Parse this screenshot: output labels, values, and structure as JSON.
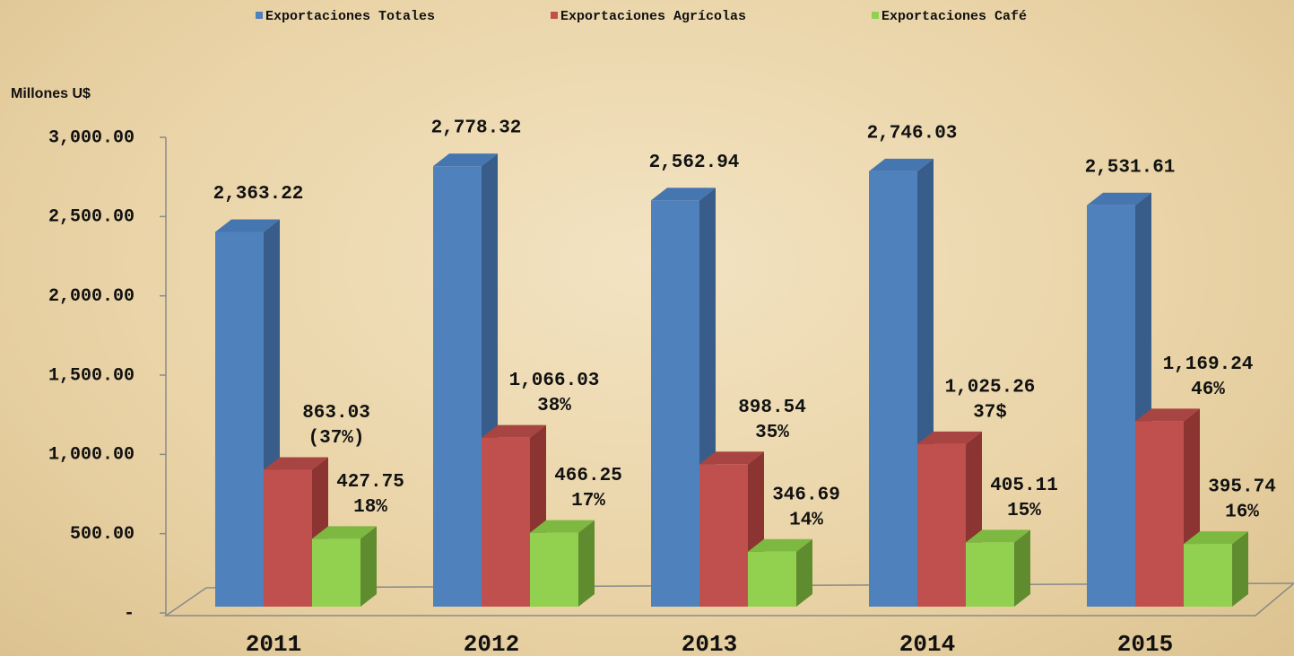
{
  "chart_data": {
    "type": "bar3d",
    "y_axis_label": "Millones U$",
    "categories": [
      "2011",
      "2012",
      "2013",
      "2014",
      "2015"
    ],
    "series": [
      {
        "name": "Exportaciones Totales",
        "color": "#4f81bd",
        "side_color": "#385d8a",
        "top_color": "#4676b0",
        "values": [
          2363.22,
          2778.32,
          2562.94,
          2746.03,
          2531.61
        ],
        "value_labels": [
          "2,363.22",
          "2,778.32",
          "2,562.94",
          "2,746.03",
          "2,531.61"
        ]
      },
      {
        "name": "Exportaciones Agrícolas",
        "color": "#c0504d",
        "side_color": "#8c3432",
        "top_color": "#a84442",
        "values": [
          863.03,
          1066.03,
          898.54,
          1025.26,
          1169.24
        ],
        "value_labels": [
          "863.03",
          "1,066.03",
          "898.54",
          "1,025.26",
          "1,169.24"
        ],
        "share_labels": [
          "(37%)",
          "38%",
          "35%",
          "37$",
          "46%"
        ]
      },
      {
        "name": "Exportaciones Café",
        "color": "#92d050",
        "side_color": "#5f8c2e",
        "top_color": "#7db840",
        "values": [
          427.75,
          466.25,
          346.69,
          405.11,
          395.74
        ],
        "value_labels": [
          "427.75",
          "466.25",
          "346.69",
          "405.11",
          "395.74"
        ],
        "share_labels": [
          "18%",
          "17%",
          "14%",
          "15%",
          "16%"
        ]
      }
    ],
    "ylim": [
      0,
      3000
    ],
    "yticks": [
      {
        "value": 0,
        "label": "-"
      },
      {
        "value": 500,
        "label": "500.00"
      },
      {
        "value": 1000,
        "label": "1,000.00"
      },
      {
        "value": 1500,
        "label": "1,500.00"
      },
      {
        "value": 2000,
        "label": "2,000.00"
      },
      {
        "value": 2500,
        "label": "2,500.00"
      },
      {
        "value": 3000,
        "label": "3,000.00"
      }
    ],
    "legend": "top"
  }
}
